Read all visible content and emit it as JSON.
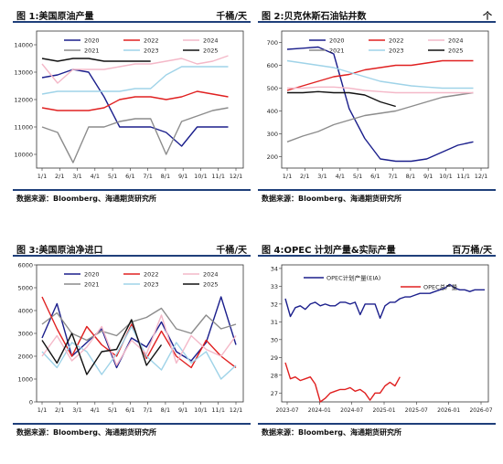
{
  "panels": [
    {
      "title": "图 1:美国原油产量",
      "unit": "千桶/天",
      "source": "数据来源：Bloomberg、海通期货研究所"
    },
    {
      "title": "图 2:贝克休斯石油钻井数",
      "unit": "个",
      "source": "数据来源：Bloomberg、海通期货研究所"
    },
    {
      "title": "图 3:美国原油净进口",
      "unit": "千桶/天",
      "source": "数据来源：Bloomberg、海通期货研究所"
    },
    {
      "title": "图 4:OPEC 计划产量&实际产量",
      "unit": "百万桶/天",
      "source": "数据来源：Bloomberg、海通期货研究所"
    }
  ],
  "chart_data": [
    {
      "type": "line",
      "x_ticks": [
        "1/1",
        "2/1",
        "3/1",
        "4/1",
        "5/1",
        "6/1",
        "7/1",
        "8/1",
        "9/1",
        "10/1",
        "11/1",
        "12/1"
      ],
      "y_ticks": [
        10000,
        11000,
        12000,
        13000,
        14000
      ],
      "ylim": [
        9500,
        14500
      ],
      "series": [
        {
          "name": "2020",
          "color": "#1b1f8c",
          "values": [
            12800,
            12900,
            13100,
            13000,
            12100,
            11000,
            11000,
            11000,
            10800,
            10300,
            11000,
            11000,
            11000
          ]
        },
        {
          "name": "2021",
          "color": "#8c8c8c",
          "values": [
            11000,
            10800,
            9700,
            11000,
            11000,
            11200,
            11300,
            11300,
            10000,
            11200,
            11400,
            11600,
            11700
          ]
        },
        {
          "name": "2022",
          "color": "#e02020",
          "values": [
            11700,
            11600,
            11600,
            11600,
            11700,
            12000,
            12100,
            12100,
            12000,
            12100,
            12300,
            12200,
            12100
          ]
        },
        {
          "name": "2023",
          "color": "#9fd3e8",
          "values": [
            12200,
            12300,
            12300,
            12300,
            12300,
            12300,
            12400,
            12400,
            12900,
            13200,
            13200,
            13200,
            13200
          ]
        },
        {
          "name": "2024",
          "color": "#f4b8c8",
          "values": [
            13300,
            12600,
            13100,
            13100,
            13100,
            13200,
            13300,
            13300,
            13400,
            13500,
            13300,
            13400,
            13600
          ]
        },
        {
          "name": "2025",
          "color": "#111111",
          "values": [
            13500,
            13400,
            13500,
            13500,
            13400,
            13400,
            13400,
            13400
          ]
        }
      ]
    },
    {
      "type": "line",
      "x_ticks": [
        "1/1",
        "2/1",
        "3/1",
        "4/1",
        "5/1",
        "6/1",
        "7/1",
        "8/1",
        "9/1",
        "10/1",
        "11/1",
        "12/1"
      ],
      "y_ticks": [
        200,
        300,
        400,
        500,
        600,
        700
      ],
      "ylim": [
        150,
        750
      ],
      "series": [
        {
          "name": "2020",
          "color": "#1b1f8c",
          "values": [
            670,
            675,
            680,
            650,
            410,
            280,
            190,
            180,
            180,
            190,
            220,
            250,
            265
          ]
        },
        {
          "name": "2021",
          "color": "#8c8c8c",
          "values": [
            265,
            290,
            310,
            340,
            360,
            380,
            390,
            400,
            420,
            440,
            460,
            470,
            480
          ]
        },
        {
          "name": "2022",
          "color": "#e02020",
          "values": [
            490,
            510,
            530,
            550,
            560,
            580,
            590,
            600,
            600,
            610,
            620,
            620,
            620
          ]
        },
        {
          "name": "2023",
          "color": "#9fd3e8",
          "values": [
            620,
            610,
            600,
            590,
            570,
            550,
            530,
            520,
            510,
            505,
            500,
            500,
            500
          ]
        },
        {
          "name": "2024",
          "color": "#f4b8c8",
          "values": [
            500,
            500,
            505,
            505,
            500,
            490,
            485,
            480,
            480,
            480,
            480,
            480,
            480
          ]
        },
        {
          "name": "2025",
          "color": "#111111",
          "values": [
            480,
            480,
            485,
            480,
            480,
            470,
            440,
            420
          ]
        }
      ]
    },
    {
      "type": "line",
      "x_ticks": [
        "1/1",
        "2/1",
        "3/1",
        "4/1",
        "5/1",
        "6/1",
        "7/1",
        "8/1",
        "9/1",
        "10/1",
        "11/1",
        "12/1"
      ],
      "y_ticks": [
        0,
        1000,
        2000,
        3000,
        4000,
        5000,
        6000
      ],
      "ylim": [
        0,
        6000
      ],
      "series": [
        {
          "name": "2020",
          "color": "#1b1f8c",
          "values": [
            2800,
            4300,
            2000,
            2600,
            3200,
            1500,
            2800,
            2400,
            3500,
            2200,
            1800,
            2600,
            4600,
            2500
          ]
        },
        {
          "name": "2021",
          "color": "#8c8c8c",
          "values": [
            3400,
            3900,
            3000,
            2700,
            3100,
            2900,
            3500,
            3700,
            4100,
            3200,
            3000,
            3800,
            3200,
            3400
          ]
        },
        {
          "name": "2022",
          "color": "#e02020",
          "values": [
            4600,
            3200,
            2000,
            3300,
            2500,
            2000,
            3400,
            1900,
            3100,
            2000,
            1500,
            2700,
            2000,
            1500
          ]
        },
        {
          "name": "2023",
          "color": "#9fd3e8",
          "values": [
            2200,
            1500,
            2600,
            2200,
            1200,
            2100,
            3300,
            2000,
            1400,
            2600,
            1700,
            2200,
            1000,
            1600
          ]
        },
        {
          "name": "2024",
          "color": "#f4b8c8",
          "values": [
            2000,
            2900,
            1800,
            2400,
            3300,
            1600,
            2700,
            2100,
            3800,
            1700,
            2900,
            2300,
            2000,
            2900
          ]
        },
        {
          "name": "2025",
          "color": "#111111",
          "values": [
            2700,
            1700,
            3000,
            1200,
            2200,
            2300,
            3600,
            1600,
            2500
          ]
        }
      ]
    },
    {
      "type": "line",
      "x_ticks": [
        "2023-07",
        "2024-01",
        "2024-07",
        "2025-01",
        "2025-07",
        "2026-01",
        "2026-07"
      ],
      "y_ticks": [
        27,
        28,
        29,
        30,
        31,
        32,
        33,
        34
      ],
      "ylim": [
        26.5,
        34.2
      ],
      "series": [
        {
          "name": "OPEC计划产量(EIA)",
          "color": "#1b1f8c",
          "x": [
            0,
            1,
            2,
            3,
            4,
            5,
            6,
            7,
            8,
            9,
            10,
            11,
            12,
            13,
            14,
            15,
            16,
            17,
            18,
            19,
            20,
            21,
            22,
            23,
            24,
            25,
            26,
            27,
            28,
            29,
            30,
            31,
            32,
            33,
            34,
            35,
            36,
            37,
            38,
            39,
            40
          ],
          "values": [
            32.3,
            31.3,
            31.8,
            31.9,
            31.7,
            32.0,
            32.1,
            31.9,
            32.0,
            31.9,
            31.9,
            32.1,
            32.1,
            32.0,
            32.1,
            31.4,
            32.0,
            32.0,
            32.0,
            31.2,
            31.9,
            32.1,
            32.1,
            32.3,
            32.4,
            32.4,
            32.5,
            32.6,
            32.6,
            32.6,
            32.7,
            32.8,
            32.9,
            33.1,
            32.9,
            32.8,
            32.8,
            32.7,
            32.8,
            32.8,
            32.8
          ]
        },
        {
          "name": "OPEC总产量",
          "color": "#e02020",
          "x": [
            0,
            1,
            2,
            3,
            4,
            5,
            6,
            7,
            8,
            9,
            10,
            11,
            12,
            13,
            14,
            15,
            16,
            17,
            18,
            19,
            20,
            21,
            22,
            23
          ],
          "values": [
            28.7,
            27.8,
            27.9,
            27.7,
            27.8,
            27.9,
            27.5,
            26.5,
            26.7,
            27.0,
            27.1,
            27.2,
            27.2,
            27.3,
            27.1,
            27.2,
            27.0,
            26.6,
            27.0,
            27.0,
            27.4,
            27.6,
            27.4,
            27.9
          ]
        }
      ],
      "legend": "top-left"
    }
  ]
}
